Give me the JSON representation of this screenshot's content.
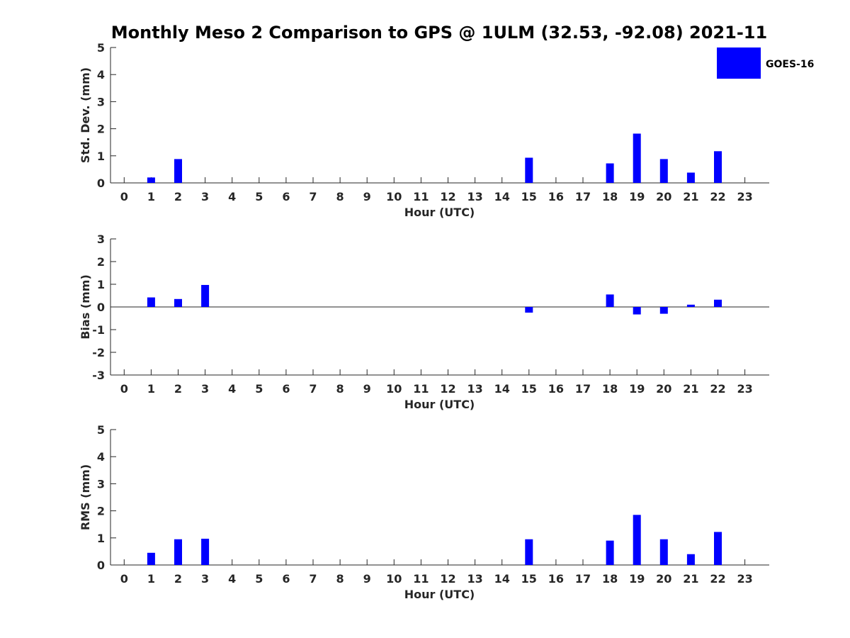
{
  "title": "Monthly Meso 2 Comparison to GPS @ 1ULM (32.53, -92.08) 2021-11",
  "legend": {
    "label": "GOES-16",
    "color": "#0000ff",
    "placement": "top-right"
  },
  "chart_data": [
    {
      "type": "bar",
      "title": "Monthly Meso 2 Comparison to GPS @ 1ULM (32.53, -92.08) 2021-11",
      "xlabel": "Hour (UTC)",
      "ylabel": "Std. Dev. (mm)",
      "categories": [
        "0",
        "1",
        "2",
        "3",
        "4",
        "5",
        "6",
        "7",
        "8",
        "9",
        "10",
        "11",
        "12",
        "13",
        "14",
        "15",
        "16",
        "17",
        "18",
        "19",
        "20",
        "21",
        "22",
        "23"
      ],
      "ylim": [
        0,
        5
      ],
      "yticks": [
        0,
        1,
        2,
        3,
        4,
        5
      ],
      "grid": false,
      "series": [
        {
          "name": "GOES-16",
          "color": "#0000ff",
          "values": [
            null,
            0.2,
            0.88,
            null,
            null,
            null,
            null,
            null,
            null,
            null,
            null,
            null,
            null,
            null,
            null,
            0.93,
            null,
            null,
            0.72,
            1.82,
            0.88,
            0.38,
            1.17,
            null
          ]
        }
      ]
    },
    {
      "type": "bar",
      "xlabel": "Hour (UTC)",
      "ylabel": "Bias (mm)",
      "categories": [
        "0",
        "1",
        "2",
        "3",
        "4",
        "5",
        "6",
        "7",
        "8",
        "9",
        "10",
        "11",
        "12",
        "13",
        "14",
        "15",
        "16",
        "17",
        "18",
        "19",
        "20",
        "21",
        "22",
        "23"
      ],
      "ylim": [
        -3,
        3
      ],
      "yticks": [
        -3,
        -2,
        -1,
        0,
        1,
        2,
        3
      ],
      "grid": false,
      "zero_line": true,
      "series": [
        {
          "name": "GOES-16",
          "color": "#0000ff",
          "values": [
            null,
            0.42,
            0.35,
            0.97,
            null,
            null,
            null,
            null,
            null,
            null,
            null,
            null,
            null,
            null,
            null,
            -0.25,
            null,
            null,
            0.55,
            -0.33,
            -0.3,
            0.1,
            0.32,
            null
          ]
        }
      ]
    },
    {
      "type": "bar",
      "xlabel": "Hour (UTC)",
      "ylabel": "RMS (mm)",
      "categories": [
        "0",
        "1",
        "2",
        "3",
        "4",
        "5",
        "6",
        "7",
        "8",
        "9",
        "10",
        "11",
        "12",
        "13",
        "14",
        "15",
        "16",
        "17",
        "18",
        "19",
        "20",
        "21",
        "22",
        "23"
      ],
      "ylim": [
        0,
        5
      ],
      "yticks": [
        0,
        1,
        2,
        3,
        4,
        5
      ],
      "grid": false,
      "series": [
        {
          "name": "GOES-16",
          "color": "#0000ff",
          "values": [
            null,
            0.45,
            0.95,
            0.97,
            null,
            null,
            null,
            null,
            null,
            null,
            null,
            null,
            null,
            null,
            null,
            0.95,
            null,
            null,
            0.9,
            1.85,
            0.95,
            0.4,
            1.22,
            null
          ]
        }
      ]
    }
  ]
}
